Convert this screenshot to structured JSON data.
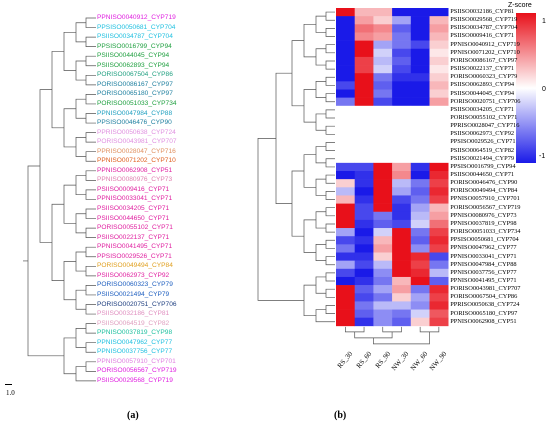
{
  "figure": {
    "label_a": "(a)",
    "label_b": "(b)",
    "scale_label": "1.0"
  },
  "tree": {
    "leaves": [
      {
        "label": "PPNISO0040912_CYP719",
        "color": "#e020e0"
      },
      {
        "label": "PPSISO0050681_CYP704",
        "color": "#20c0e0"
      },
      {
        "label": "PSIISO0034787_CYP704",
        "color": "#20c0e0"
      },
      {
        "label": "PPSISO0016799_CYP94",
        "color": "#20a040"
      },
      {
        "label": "PSIISO0044045_CYP94",
        "color": "#20a040"
      },
      {
        "label": "PSIISO0062893_CYP94",
        "color": "#20a040"
      },
      {
        "label": "PORISO0067504_CYP86",
        "color": "#20a080"
      },
      {
        "label": "PORISO0086167_CYP97",
        "color": "#2080a0"
      },
      {
        "label": "PORISO0065180_CYP97",
        "color": "#2080a0"
      },
      {
        "label": "PORISO0051033_CYP734",
        "color": "#20a040"
      },
      {
        "label": "PPNISO0047984_CYP88",
        "color": "#20a0c0"
      },
      {
        "label": "PPSISO0046476_CYP90",
        "color": "#2080a0"
      },
      {
        "label": "PPRISO0050638_CYP724",
        "color": "#e090e0"
      },
      {
        "label": "PORISO0043981_CYP707",
        "color": "#e090e0"
      },
      {
        "label": "PPRISO0028047_CYP716",
        "color": "#e09060"
      },
      {
        "label": "PPNISO0071202_CYP710",
        "color": "#e06020"
      },
      {
        "label": "PPNISO0062908_CYP51",
        "color": "#e020a0"
      },
      {
        "label": "PPNISO0080976_CYP73",
        "color": "#e080b0"
      },
      {
        "label": "PSIISO0009416_CYP71",
        "color": "#e020a0"
      },
      {
        "label": "PPNISO0033041_CYP71",
        "color": "#e020a0"
      },
      {
        "label": "PSIISO0034205_CYP71",
        "color": "#e020a0"
      },
      {
        "label": "PSIISO0044650_CYP71",
        "color": "#e020a0"
      },
      {
        "label": "PORISO0055102_CYP71",
        "color": "#e020a0"
      },
      {
        "label": "PSIISO0022137_CYP71",
        "color": "#e020a0"
      },
      {
        "label": "PPNISO0041495_CYP71",
        "color": "#e020a0"
      },
      {
        "label": "PPSISO0029526_CYP71",
        "color": "#e020a0"
      },
      {
        "label": "PORISO0049494_CYP84",
        "color": "#e0a020"
      },
      {
        "label": "PSIISO0062973_CYP92",
        "color": "#e020a0"
      },
      {
        "label": "PORISO0060323_CYP79",
        "color": "#2060c0"
      },
      {
        "label": "PSIISO0021494_CYP79",
        "color": "#2060c0"
      },
      {
        "label": "PORISO0020751_CYP706",
        "color": "#204080"
      },
      {
        "label": "PSIISO0032186_CYP81",
        "color": "#e090c0"
      },
      {
        "label": "PSIISO0064519_CYP82",
        "color": "#e0a0c0"
      },
      {
        "label": "PPNISO0037819_CYP98",
        "color": "#20c0a0"
      },
      {
        "label": "PPNISO0047962_CYP77",
        "color": "#20c0e0"
      },
      {
        "label": "PPNISO0037756_CYP77",
        "color": "#20c0e0"
      },
      {
        "label": "PPNISO0057910_CYP701",
        "color": "#e080e0"
      },
      {
        "label": "PORISO0056567_CYP719",
        "color": "#e020e0"
      },
      {
        "label": "PSIISO0029568_CYP719",
        "color": "#e020e0"
      }
    ]
  },
  "heatmap": {
    "legend_title": "Z-score",
    "legend_ticks": [
      "1",
      "0",
      "-1"
    ],
    "legend_colors": {
      "high": "#e8101a",
      "mid": "#ffffff",
      "low": "#1a1ae8"
    },
    "columns": [
      "RS_30",
      "RS_60",
      "RS_90",
      "NW_30",
      "NW_60",
      "NW_90"
    ],
    "rows": [
      {
        "label": "PSIISO0032186_CYP81",
        "z": [
          1,
          0.3,
          0.3,
          -1,
          -1,
          -1
        ]
      },
      {
        "label": "PSIISO0029568_CYP719",
        "z": [
          -1,
          0.4,
          0.2,
          -0.4,
          -1,
          0.3
        ]
      },
      {
        "label": "PSIISO0034787_CYP704",
        "z": [
          -1,
          0.6,
          0.5,
          -0.7,
          -1,
          0.4
        ]
      },
      {
        "label": "PSIISO0009416_CYP71",
        "z": [
          -1,
          0.5,
          0.4,
          -0.6,
          -1,
          0.3
        ]
      },
      {
        "label": "PPNISO0040912_CYP719",
        "z": [
          -1,
          1,
          -0.4,
          -0.6,
          -0.8,
          0.2
        ]
      },
      {
        "label": "PPNISO0071202_CYP710",
        "z": [
          -1,
          1,
          -0.2,
          -0.8,
          -1,
          0.1
        ]
      },
      {
        "label": "PORISO0086167_CYP97",
        "z": [
          -1,
          0.8,
          -0.3,
          -0.7,
          -1,
          0.2
        ]
      },
      {
        "label": "PSIISO0022137_CYP71",
        "z": [
          -1,
          0.8,
          -0.2,
          -0.8,
          -1,
          0.1
        ]
      },
      {
        "label": "PORISO0060323_CYP79",
        "z": [
          -1,
          1,
          -0.6,
          -0.9,
          -0.9,
          0.2
        ]
      },
      {
        "label": "PSIISO0062893_CYP94",
        "z": [
          -0.8,
          1,
          -0.7,
          -1,
          -1,
          0.3
        ]
      },
      {
        "label": "PSIISO0044045_CYP94",
        "z": [
          -1,
          1,
          -0.6,
          -1,
          -1,
          0.2
        ]
      },
      {
        "label": "PORISO0020751_CYP706",
        "z": [
          -0.6,
          1,
          -0.8,
          -1,
          -1,
          0.4
        ]
      },
      {
        "label": "PSIISO0034205_CYP71",
        "z": [
          0,
          0,
          0,
          0,
          0,
          0
        ]
      },
      {
        "label": "PORISO0055102_CYP71",
        "z": [
          0,
          0,
          0,
          0,
          0,
          0
        ]
      },
      {
        "label": "PPRISO0028047_CYP716",
        "z": [
          0,
          0,
          0,
          0,
          0,
          0
        ]
      },
      {
        "label": "PSIISO0062973_CYP92",
        "z": [
          0,
          0,
          0,
          0,
          0,
          0
        ]
      },
      {
        "label": "PPSISO0029526_CYP71",
        "z": [
          0,
          0,
          0,
          0,
          0,
          0
        ]
      },
      {
        "label": "PSIISO0064519_CYP82",
        "z": [
          0,
          0,
          0,
          0,
          0,
          0
        ]
      },
      {
        "label": "PSIISO0021494_CYP79",
        "z": [
          0,
          0,
          0,
          0,
          0,
          0
        ]
      },
      {
        "label": "PPSISO0016799_CYP94",
        "z": [
          -0.8,
          -0.8,
          1,
          0.4,
          -0.9,
          1
        ]
      },
      {
        "label": "PSIISO0044650_CYP71",
        "z": [
          -1,
          -0.9,
          1,
          0.5,
          -1,
          0.9
        ]
      },
      {
        "label": "PORISO0046476_CYP90",
        "z": [
          0.2,
          -0.9,
          1,
          -0.3,
          -0.6,
          0.8
        ]
      },
      {
        "label": "PORISO0049494_CYP84",
        "z": [
          -0.3,
          -1,
          1,
          -0.4,
          -0.7,
          0.9
        ]
      },
      {
        "label": "PPNISO0057910_CYP701",
        "z": [
          0.3,
          -0.9,
          1,
          -0.8,
          -0.6,
          0.8
        ]
      },
      {
        "label": "PORISO0056567_CYP719",
        "z": [
          1,
          -0.8,
          1,
          -0.9,
          -0.4,
          0.3
        ]
      },
      {
        "label": "PPNISO0080976_CYP73",
        "z": [
          1,
          -0.8,
          -0.6,
          -0.9,
          -0.3,
          0.4
        ]
      },
      {
        "label": "PPNISO0037819_CYP98",
        "z": [
          1,
          -0.9,
          -0.7,
          -0.8,
          -0.2,
          0.6
        ]
      },
      {
        "label": "PORISO0051033_CYP734",
        "z": [
          -0.4,
          -1,
          -0.2,
          1,
          -0.6,
          0.8
        ]
      },
      {
        "label": "PPSISO0050681_CYP704",
        "z": [
          -0.8,
          -0.9,
          0.3,
          1,
          -0.7,
          0.9
        ]
      },
      {
        "label": "PPNISO0047962_CYP77",
        "z": [
          -0.6,
          -1,
          0.4,
          1,
          -0.5,
          0.8
        ]
      },
      {
        "label": "PPNISO0033041_CYP71",
        "z": [
          -0.9,
          -0.9,
          0.2,
          1,
          0.9,
          -0.8
        ]
      },
      {
        "label": "PPNISO0047984_CYP88",
        "z": [
          -0.4,
          -0.8,
          -0.3,
          1,
          0.8,
          -0.6
        ]
      },
      {
        "label": "PPNISO0037756_CYP77",
        "z": [
          -0.8,
          -1,
          -0.5,
          1,
          0.9,
          -0.3
        ]
      },
      {
        "label": "PPNISO0041495_CYP71",
        "z": [
          -1,
          -0.9,
          -0.6,
          0.3,
          1,
          -0.7
        ]
      },
      {
        "label": "PORISO0043981_CYP707",
        "z": [
          1,
          -0.7,
          -0.4,
          0.4,
          -0.6,
          0.9
        ]
      },
      {
        "label": "PORISO0067504_CYP86",
        "z": [
          1,
          -0.8,
          -0.6,
          0.2,
          -0.4,
          0.8
        ]
      },
      {
        "label": "PPRISO0050638_CYP724",
        "z": [
          1,
          -0.6,
          -0.3,
          -0.3,
          -0.5,
          0.9
        ]
      },
      {
        "label": "PORISO0065180_CYP97",
        "z": [
          1,
          -0.7,
          -0.5,
          -0.6,
          -0.2,
          0.7
        ]
      },
      {
        "label": "PPNISO0062908_CYP51",
        "z": [
          1,
          -0.9,
          -0.5,
          -0.7,
          0.2,
          0.8
        ]
      }
    ]
  }
}
